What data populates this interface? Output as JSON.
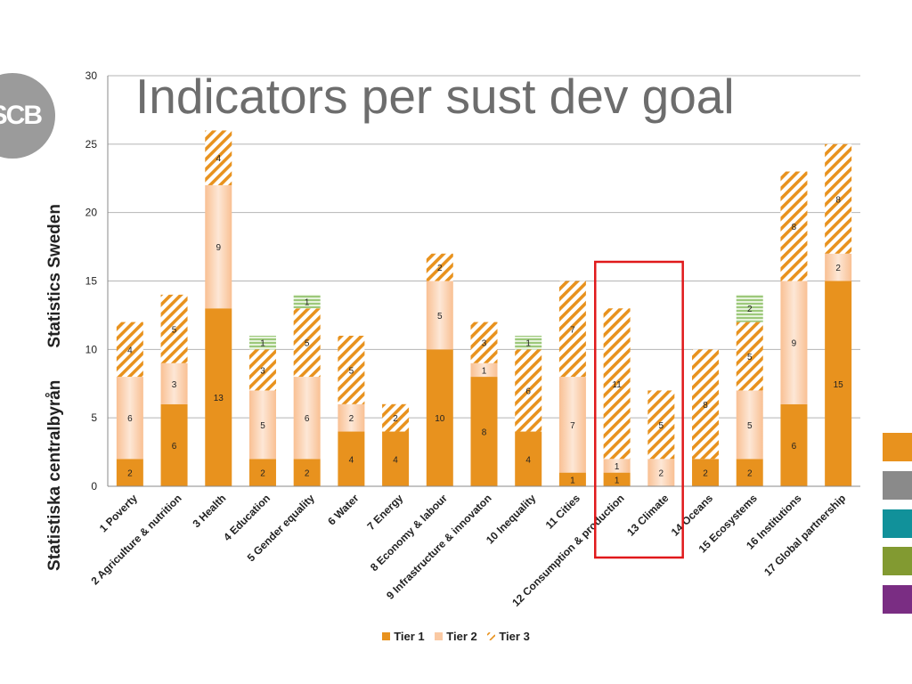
{
  "slide": {
    "title": "Indicators per sust dev goal",
    "logo_text": "SCB",
    "side_text_top": "Statistics Sweden",
    "side_text_bottom": "Statistiska centralbyrån",
    "side_swatch_colors": [
      "#e8921e",
      "#8a8a8a",
      "#11919a",
      "#829a31",
      "#7a2d83"
    ]
  },
  "chart_data": {
    "type": "bar",
    "stacked": true,
    "categories": [
      "1 Poverty",
      "2 Agriculture & nutrition",
      "3 Health",
      "4 Education",
      "5 Gender equality",
      "6 Water",
      "7 Energy",
      "8 Economy & labour",
      "9 Infrastructure & innovaton",
      "10 Inequality",
      "11 Cities",
      "12 Consumption & production",
      "13 Climate",
      "14 Oceans",
      "15 Ecosystems",
      "16 Institutions",
      "17 Global partnership"
    ],
    "series": [
      {
        "name": "Tier 1",
        "values": [
          2,
          6,
          13,
          2,
          2,
          4,
          4,
          10,
          8,
          4,
          1,
          1,
          0,
          2,
          2,
          6,
          15
        ],
        "color": "#e8921e"
      },
      {
        "name": "Tier 2",
        "values": [
          6,
          3,
          9,
          5,
          6,
          2,
          0,
          5,
          1,
          0,
          7,
          1,
          2,
          0,
          5,
          9,
          2
        ],
        "color": "#fac9a3"
      },
      {
        "name": "Tier 3",
        "values": [
          4,
          5,
          4,
          3,
          5,
          5,
          2,
          2,
          3,
          6,
          7,
          11,
          5,
          8,
          5,
          8,
          8
        ],
        "color": "#e8921e"
      },
      {
        "name": "",
        "values": [
          0,
          0,
          0,
          1,
          1,
          0,
          0,
          0,
          0,
          1,
          0,
          0,
          0,
          0,
          2,
          0,
          0
        ],
        "color": "#9cc87a"
      }
    ],
    "ylim": [
      0,
      30
    ],
    "yticks": [
      0,
      5,
      10,
      15,
      20,
      25,
      30
    ],
    "grid": true,
    "legend_position": "bottom",
    "highlight_categories": [
      "12 Consumption & production",
      "13 Climate"
    ],
    "highlight_color": "#e0191b"
  }
}
